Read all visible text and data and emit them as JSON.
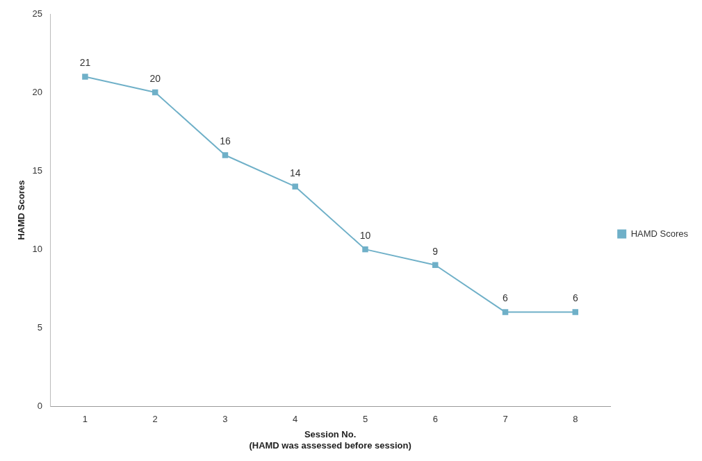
{
  "chart_data": {
    "type": "line",
    "xlabel": "Session No.\n(HAMD was assessed before session)",
    "ylabel": "HAMD Scores",
    "categories": [
      "1",
      "2",
      "3",
      "4",
      "5",
      "6",
      "7",
      "8"
    ],
    "series": [
      {
        "name": "HAMD Scores",
        "color": "#6fb0c8",
        "values": [
          21,
          20,
          16,
          14,
          10,
          9,
          6,
          6
        ]
      }
    ],
    "ylim": [
      0,
      25
    ],
    "yticks": [
      0,
      5,
      10,
      15,
      20,
      25
    ],
    "grid": false,
    "legend": "right",
    "marker": "square",
    "line_style": "solid",
    "data_labels": true
  }
}
